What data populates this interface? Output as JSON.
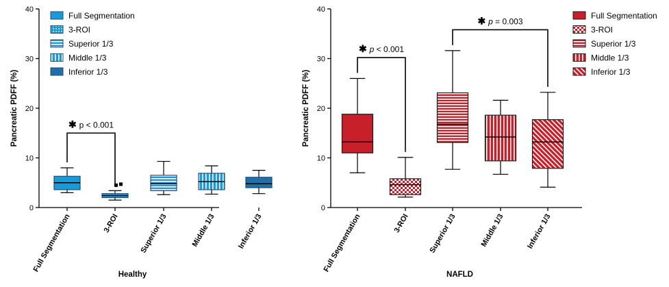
{
  "colors": {
    "healthy_fill": "#1a9ad6",
    "healthy_pattern": "#ffffff",
    "healthy_edge": "#1f4e79",
    "nafld_fill": "#c8202b",
    "nafld_pattern": "#ffffff",
    "nafld_edge": "#1a1a1a"
  },
  "chart_data": [
    {
      "type": "box",
      "title": "",
      "xlabel": "Healthy",
      "ylabel": "Pancreatic PDFF (%)",
      "ylim": [
        0,
        40
      ],
      "yticks": [
        0,
        10,
        20,
        30,
        40
      ],
      "legend_position": "top-left",
      "categories": [
        "Full Segmentation",
        "3-ROI",
        "Superior 1/3",
        "Middle 1/3",
        "Inferior 1/3"
      ],
      "legend": [
        "Full Segmentation",
        "3-ROI",
        "Superior 1/3",
        "Middle 1/3",
        "Inferior 1/3"
      ],
      "patterns": [
        "solid",
        "dots",
        "hlines",
        "vlines",
        "dark"
      ],
      "boxes": [
        {
          "min": 3.0,
          "q1": 3.6,
          "median": 5.0,
          "q3": 6.3,
          "max": 8.0,
          "outliers": []
        },
        {
          "min": 1.5,
          "q1": 2.0,
          "median": 2.4,
          "q3": 2.8,
          "max": 3.4,
          "outliers": [
            4.5,
            4.7
          ]
        },
        {
          "min": 2.6,
          "q1": 3.4,
          "median": 4.8,
          "q3": 6.5,
          "max": 9.3,
          "outliers": []
        },
        {
          "min": 2.7,
          "q1": 3.6,
          "median": 5.2,
          "q3": 6.9,
          "max": 8.4,
          "outliers": []
        },
        {
          "min": 2.8,
          "q1": 4.0,
          "median": 4.8,
          "q3": 6.1,
          "max": 7.5,
          "outliers": []
        }
      ],
      "annotations": [
        {
          "from": 0,
          "to": 1,
          "y": 15.0,
          "star": "✱",
          "text": "p < 0.001",
          "italic_p": false
        }
      ]
    },
    {
      "type": "box",
      "title": "",
      "xlabel": "NAFLD",
      "ylabel": "Pancreatic PDFF (%)",
      "ylim": [
        0,
        40
      ],
      "yticks": [
        0,
        10,
        20,
        30,
        40
      ],
      "legend_position": "top-right",
      "categories": [
        "Full Segmentation",
        "3-ROI",
        "Superior 1/3",
        "Middle 1/3",
        "Inferior 1/3"
      ],
      "legend": [
        "Full Segmentation",
        "3-ROI",
        "Superior 1/3",
        "Middle 1/3",
        "Inferior 1/3"
      ],
      "patterns": [
        "solid",
        "checker",
        "hlines",
        "vlines",
        "diag"
      ],
      "boxes": [
        {
          "min": 7.0,
          "q1": 11.0,
          "median": 13.2,
          "q3": 18.8,
          "max": 26.0,
          "outliers": []
        },
        {
          "min": 2.1,
          "q1": 2.6,
          "median": 4.6,
          "q3": 5.8,
          "max": 10.1,
          "outliers": []
        },
        {
          "min": 7.7,
          "q1": 13.1,
          "median": 16.8,
          "q3": 23.1,
          "max": 31.6,
          "outliers": []
        },
        {
          "min": 6.7,
          "q1": 9.4,
          "median": 14.2,
          "q3": 18.6,
          "max": 21.6,
          "outliers": []
        },
        {
          "min": 4.1,
          "q1": 7.9,
          "median": 13.2,
          "q3": 17.7,
          "max": 23.2,
          "outliers": []
        }
      ],
      "annotations": [
        {
          "from": 0,
          "to": 1,
          "y": 30.2,
          "star": "✱",
          "text": "p < 0.001",
          "italic_p": true
        },
        {
          "from": 2,
          "to": 4,
          "y": 35.8,
          "star": "✱",
          "text": "p = 0.003",
          "italic_p": true
        }
      ]
    }
  ]
}
